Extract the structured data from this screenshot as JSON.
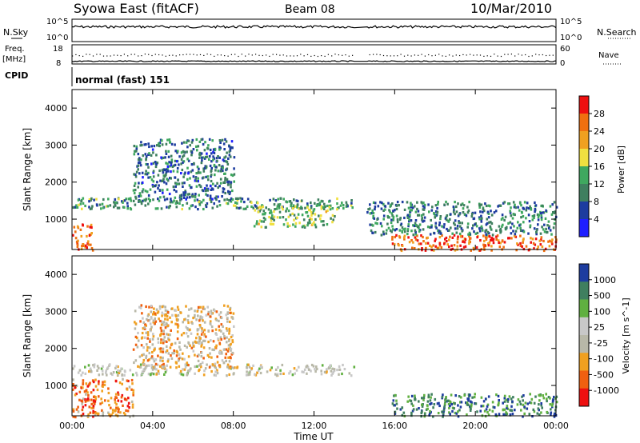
{
  "header": {
    "station": "Syowa East (fitACF)",
    "beam": "Beam 08",
    "date": "10/Mar/2010"
  },
  "top_panels": {
    "nsky_label": "N.Sky",
    "nsky_ticks": [
      "10^5",
      "10^0"
    ],
    "nsearch_label": "N.Search",
    "nsearch_ticks": [
      "10^5",
      "10^0"
    ],
    "freq_label_1": "Freq.",
    "freq_label_2": "[MHz]",
    "freq_ticks": [
      "18",
      "8"
    ],
    "nave_label": "Nave",
    "nave_ticks": [
      "60",
      "0"
    ],
    "cpid_label": "CPID",
    "cpid_value": "normal (fast) 151"
  },
  "colors": {
    "white": "#ffffff",
    "black": "#000000",
    "power_scale": [
      "#1f1fff",
      "#1d3c9f",
      "#3f7f5f",
      "#3fa85f",
      "#f0e040",
      "#f0a020",
      "#f07010",
      "#ee1010"
    ],
    "velocity_scale": [
      "#ee1010",
      "#f06010",
      "#f0a020",
      "#b8b8a8",
      "#c8c8c8",
      "#60b040",
      "#3f7f5f",
      "#1d3c9f"
    ]
  },
  "chart_data": [
    {
      "type": "heatmap",
      "name": "power",
      "ylabel": "Slant Range [km]",
      "ylim": [
        180,
        4500
      ],
      "yticks": [
        "1000",
        "2000",
        "3000",
        "4000"
      ],
      "xlim": [
        0,
        24
      ],
      "colorbar_label": "Power [dB]",
      "colorbar_ticks": [
        "4",
        "8",
        "12",
        "16",
        "20",
        "24",
        "28"
      ],
      "features": [
        {
          "t0": 0.0,
          "t1": 1.0,
          "r0": 180,
          "r1": 900,
          "level": 0.85
        },
        {
          "t0": 0.0,
          "t1": 14.0,
          "r0": 1300,
          "r1": 1600,
          "level": 0.35
        },
        {
          "t0": 3.0,
          "t1": 8.0,
          "r0": 1500,
          "r1": 3200,
          "level": 0.25
        },
        {
          "t0": 9.0,
          "t1": 13.0,
          "r0": 800,
          "r1": 1400,
          "level": 0.45
        },
        {
          "t0": 15.8,
          "t1": 24.0,
          "r0": 180,
          "r1": 600,
          "level": 0.9
        },
        {
          "t0": 14.5,
          "t1": 24.0,
          "r0": 600,
          "r1": 1500,
          "level": 0.3
        }
      ]
    },
    {
      "type": "heatmap",
      "name": "velocity",
      "ylabel": "Slant Range [km]",
      "xlabel": "Time UT",
      "ylim": [
        180,
        4500
      ],
      "yticks": [
        "1000",
        "2000",
        "3000",
        "4000"
      ],
      "xticks": [
        "00:00",
        "04:00",
        "08:00",
        "12:00",
        "16:00",
        "20:00",
        "00:00"
      ],
      "xlim": [
        0,
        24
      ],
      "colorbar_label": "Velocity [m s^-1]",
      "colorbar_ticks": [
        "1000",
        "500",
        "100",
        "25",
        "-25",
        "-100",
        "-500",
        "-1000"
      ],
      "features": [
        {
          "t0": 0.0,
          "t1": 14.0,
          "r0": 1300,
          "r1": 1600,
          "level": 0.5
        },
        {
          "t0": 3.0,
          "t1": 8.0,
          "r0": 1500,
          "r1": 3200,
          "level": 0.35
        },
        {
          "t0": 15.8,
          "t1": 24.0,
          "r0": 180,
          "r1": 800,
          "level": 0.85
        },
        {
          "t0": 0.0,
          "t1": 3.0,
          "r0": 180,
          "r1": 1200,
          "level": 0.2
        }
      ]
    }
  ]
}
